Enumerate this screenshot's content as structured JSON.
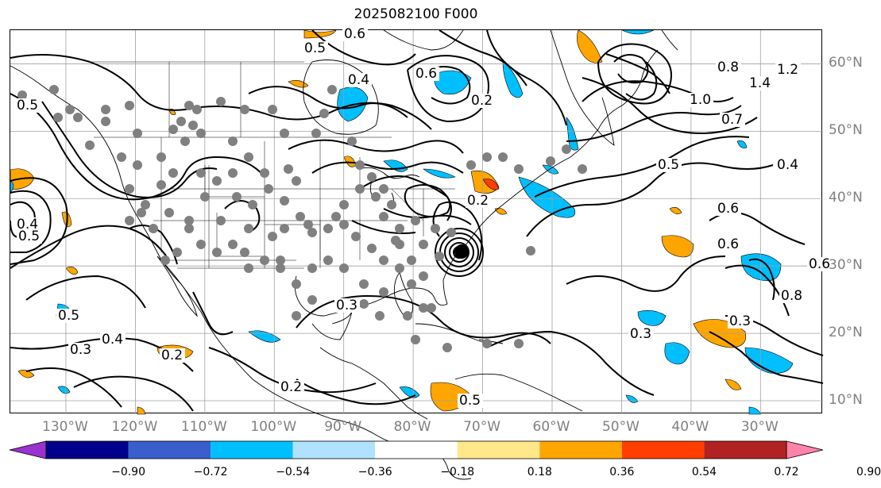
{
  "title": "2025082100 F000",
  "lat_labels": [
    {
      "text": "60°N",
      "lat": 60
    },
    {
      "text": "50°N",
      "lat": 50
    },
    {
      "text": "40°N",
      "lat": 40
    },
    {
      "text": "30°N",
      "lat": 30
    },
    {
      "text": "20°N",
      "lat": 20
    },
    {
      "text": "10°N",
      "lat": 10
    }
  ],
  "lon_labels": [
    {
      "text": "130°W",
      "lon": -130
    },
    {
      "text": "120°W",
      "lon": -120
    },
    {
      "text": "110°W",
      "lon": -110
    },
    {
      "text": "100°W",
      "lon": -100
    },
    {
      "text": "90°W",
      "lon": -90
    },
    {
      "text": "80°W",
      "lon": -80
    },
    {
      "text": "70°W",
      "lon": -70
    },
    {
      "text": "60°W",
      "lon": -60
    },
    {
      "text": "50°W",
      "lon": -50
    },
    {
      "text": "40°W",
      "lon": -40
    },
    {
      "text": "30°W",
      "lon": -30
    }
  ],
  "map_extent": {
    "lon_min": -138,
    "lon_max": -21,
    "lat_min": 8,
    "lat_max": 65
  },
  "colorbar": {
    "ticks": [
      "−0.90",
      "−0.72",
      "−0.54",
      "−0.36",
      "−0.18",
      "0.18",
      "0.36",
      "0.54",
      "0.72",
      "0.90"
    ],
    "colors": [
      "#9a32cd",
      "#00008b",
      "#3a5fcd",
      "#00bfff",
      "#b0e2ff",
      "#ffffff",
      "#ffe78a",
      "#ffa500",
      "#ff3e00",
      "#b22222",
      "#ff82ab"
    ],
    "extend": "both"
  },
  "contour_labels": [
    "0.6",
    "0.5",
    "0.4",
    "0.2",
    "0.8",
    "1.4",
    "1.2",
    "1.0",
    "0.7",
    "0.5",
    "0.4",
    "0.6",
    "0.3",
    "0.5",
    "0.3",
    "0.4",
    "0.2",
    "0.2",
    "0.3",
    "0.2",
    "0.6",
    "0.5",
    "0.4",
    "0.5",
    "0.6",
    "0.5",
    "0.3",
    "0.8",
    "0.6"
  ],
  "colors": {
    "axis_label": "#808080",
    "grid": "#a0a0a0",
    "station": "#808080"
  }
}
